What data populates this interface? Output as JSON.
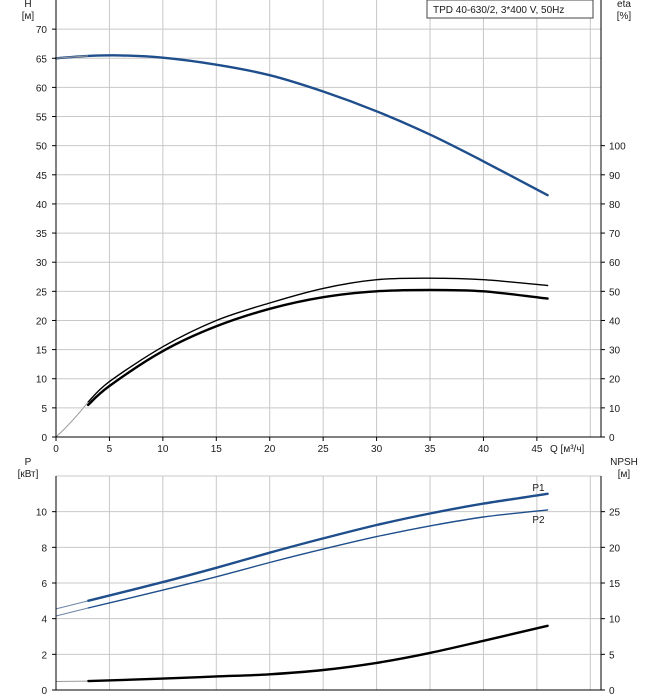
{
  "legend": {
    "text": "TPD 40-630/2, 3*400 V, 50Hz"
  },
  "colors": {
    "blue": "#1f4e8c",
    "black": "#000000",
    "grid": "#c8c8c8",
    "axis": "#000000"
  },
  "chart_data": [
    {
      "type": "line",
      "name": "head-efficiency",
      "xlabel": "Q [м³/ч]",
      "x_ticks": [
        "0",
        "5",
        "10",
        "15",
        "20",
        "25",
        "30",
        "35",
        "40",
        "45"
      ],
      "xlim": [
        0,
        51
      ],
      "left_axis": {
        "label_top": "H",
        "label_unit": "[м]",
        "ylim": [
          0,
          75
        ],
        "ticks": [
          "0",
          "5",
          "10",
          "15",
          "20",
          "25",
          "30",
          "35",
          "40",
          "45",
          "50",
          "55",
          "60",
          "65",
          "70"
        ]
      },
      "right_axis": {
        "label_top": "eta",
        "label_unit": "[%]",
        "ylim": [
          0,
          150
        ],
        "ticks": [
          "0",
          "10",
          "20",
          "30",
          "40",
          "50",
          "60",
          "70",
          "80",
          "90",
          "100"
        ]
      },
      "series": [
        {
          "key": "H",
          "axis": "left",
          "color": "#1f4e8c",
          "width": 2.4,
          "x": [
            0,
            3,
            6,
            10,
            15,
            20,
            25,
            30,
            35,
            40,
            46
          ],
          "y": [
            65,
            65.4,
            65.5,
            65.1,
            63.9,
            62.1,
            59.3,
            55.9,
            51.9,
            47.3,
            41.5
          ]
        },
        {
          "key": "eta1",
          "axis": "right",
          "color": "#000000",
          "width": 1.4,
          "x": [
            3,
            5,
            10,
            15,
            20,
            25,
            30,
            35,
            40,
            46
          ],
          "y": [
            12,
            19,
            31,
            40,
            46,
            51,
            54,
            54.5,
            54,
            52
          ]
        },
        {
          "key": "eta2",
          "axis": "right",
          "color": "#000000",
          "width": 2.4,
          "x": [
            3,
            5,
            10,
            15,
            20,
            25,
            30,
            35,
            40,
            46
          ],
          "y": [
            11,
            17.5,
            29.5,
            38,
            44,
            48,
            50,
            50.5,
            50,
            47.5
          ]
        }
      ]
    },
    {
      "type": "line",
      "name": "power-npsh",
      "xlim": [
        0,
        51
      ],
      "left_axis": {
        "label_top": "P",
        "label_unit": "[кВт]",
        "ylim": [
          0,
          12
        ],
        "ticks": [
          "0",
          "2",
          "4",
          "6",
          "8",
          "10"
        ]
      },
      "right_axis": {
        "label_top": "NPSH",
        "label_unit": "[м]",
        "ylim": [
          0,
          30
        ],
        "ticks": [
          "0",
          "5",
          "10",
          "15",
          "20",
          "25"
        ]
      },
      "series": [
        {
          "key": "P1",
          "name": "P1",
          "axis": "left",
          "color": "#1f4e8c",
          "width": 2.4,
          "x": [
            3,
            10,
            15,
            20,
            25,
            30,
            35,
            40,
            46
          ],
          "y": [
            5.0,
            6.05,
            6.85,
            7.7,
            8.5,
            9.25,
            9.9,
            10.45,
            11.0
          ]
        },
        {
          "key": "P2",
          "name": "P2",
          "axis": "left",
          "color": "#1f4e8c",
          "width": 1.4,
          "x": [
            3,
            10,
            15,
            20,
            25,
            30,
            35,
            40,
            46
          ],
          "y": [
            4.6,
            5.6,
            6.35,
            7.15,
            7.9,
            8.6,
            9.2,
            9.7,
            10.1
          ]
        },
        {
          "key": "NPSH",
          "axis": "right",
          "color": "#000000",
          "width": 2.4,
          "x": [
            3,
            10,
            15,
            20,
            25,
            30,
            35,
            40,
            46
          ],
          "y": [
            1.25,
            1.6,
            1.9,
            2.2,
            2.8,
            3.8,
            5.2,
            6.9,
            9.0
          ]
        }
      ]
    }
  ]
}
